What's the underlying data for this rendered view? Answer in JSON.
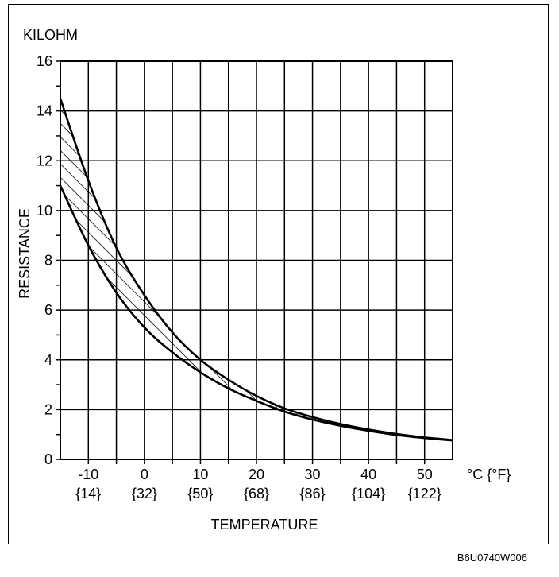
{
  "chart_data": {
    "type": "area",
    "unit_label": "KILOHM",
    "ylabel": "RESISTANCE",
    "xlabel": "TEMPERATURE",
    "x_unit_label": "°C {°F}",
    "xlim": [
      -15,
      55
    ],
    "ylim": [
      0,
      16
    ],
    "x_ticks": [
      -10,
      0,
      10,
      20,
      30,
      40,
      50
    ],
    "x_tick_labels": [
      "-10",
      "0",
      "10",
      "20",
      "30",
      "40",
      "50"
    ],
    "x_tick_labels_f": [
      "{14}",
      "{32}",
      "{50}",
      "{68}",
      "{86}",
      "{104}",
      "{122}"
    ],
    "y_ticks": [
      0,
      2,
      4,
      6,
      8,
      10,
      12,
      14,
      16
    ],
    "y_tick_labels": [
      "0",
      "2",
      "4",
      "6",
      "8",
      "10",
      "12",
      "14",
      "16"
    ],
    "grid": true,
    "fill": "hatched band between upper and lower curves",
    "series": [
      {
        "x": [
          -15,
          -10,
          -5,
          0,
          5,
          10,
          15,
          20,
          25,
          30,
          35,
          40,
          45,
          50,
          55
        ],
        "values": [
          14.5,
          11.2,
          8.5,
          6.6,
          5.1,
          4.0,
          3.2,
          2.55,
          2.05,
          1.7,
          1.42,
          1.2,
          1.02,
          0.88,
          0.78
        ]
      },
      {
        "x": [
          -15,
          -10,
          -5,
          0,
          5,
          10,
          15,
          20,
          25,
          30,
          35,
          40,
          45,
          50,
          55
        ],
        "values": [
          11.0,
          8.6,
          6.7,
          5.3,
          4.3,
          3.5,
          2.85,
          2.35,
          1.92,
          1.6,
          1.35,
          1.15,
          0.98,
          0.86,
          0.76
        ]
      }
    ]
  },
  "figure_ref": "B6U0740W006"
}
